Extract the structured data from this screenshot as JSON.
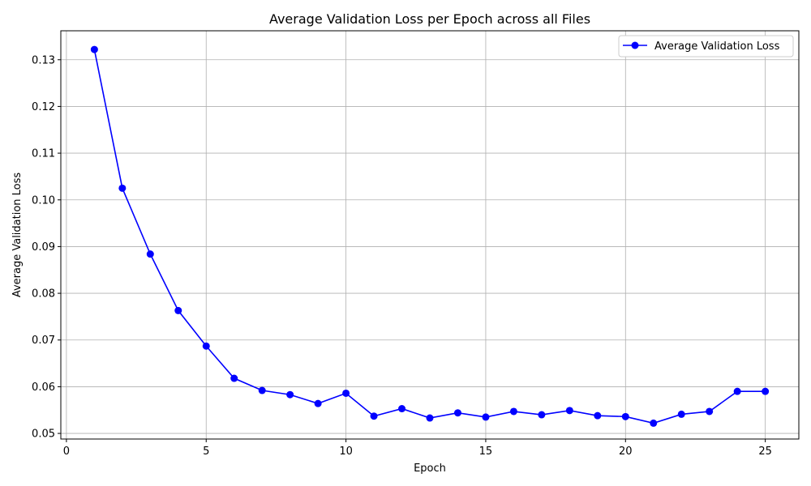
{
  "chart_data": {
    "type": "line",
    "title": "Average Validation Loss per Epoch across all Files",
    "xlabel": "Epoch",
    "ylabel": "Average Validation Loss",
    "xlim": [
      -0.2,
      26.2
    ],
    "ylim": [
      0.0488,
      0.1362
    ],
    "xticks": [
      0,
      5,
      10,
      15,
      20,
      25
    ],
    "yticks": [
      0.05,
      0.06,
      0.07,
      0.08,
      0.09,
      0.1,
      0.11,
      0.12,
      0.13
    ],
    "ytick_labels": [
      "0.05",
      "0.06",
      "0.07",
      "0.08",
      "0.09",
      "0.10",
      "0.11",
      "0.12",
      "0.13"
    ],
    "grid": true,
    "legend_position": "top-right",
    "series": [
      {
        "name": "Average Validation Loss",
        "color": "#0000ff",
        "marker": "circle",
        "x": [
          1,
          2,
          3,
          4,
          5,
          6,
          7,
          8,
          9,
          10,
          11,
          12,
          13,
          14,
          15,
          16,
          17,
          18,
          19,
          20,
          21,
          22,
          23,
          24,
          25
        ],
        "y": [
          0.1322,
          0.1025,
          0.0884,
          0.0763,
          0.0687,
          0.0618,
          0.0592,
          0.0583,
          0.0564,
          0.0586,
          0.0537,
          0.0553,
          0.0533,
          0.0544,
          0.0535,
          0.0547,
          0.054,
          0.0549,
          0.0538,
          0.0536,
          0.0522,
          0.0541,
          0.0547,
          0.059,
          0.059
        ]
      }
    ]
  }
}
